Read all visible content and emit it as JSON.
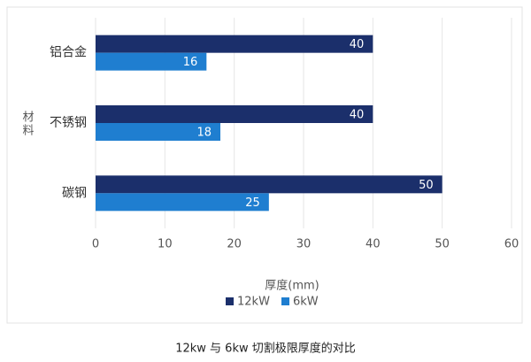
{
  "chart_data": {
    "type": "barh",
    "categories": [
      "铝合金",
      "不锈钢",
      "碳钢"
    ],
    "series": [
      {
        "name": "12kW",
        "color": "#1b2f6b",
        "values": [
          40,
          40,
          50
        ]
      },
      {
        "name": "6kW",
        "color": "#1f7ed0",
        "values": [
          16,
          18,
          25
        ]
      }
    ],
    "xlabel": "厚度(mm)",
    "ylabel": "材料",
    "xlim": [
      0,
      60
    ],
    "xticks": [
      0,
      10,
      20,
      30,
      40,
      50,
      60
    ],
    "grid": true,
    "legend": "bottom"
  },
  "caption": "12kw 与 6kw 切割极限厚度的对比"
}
